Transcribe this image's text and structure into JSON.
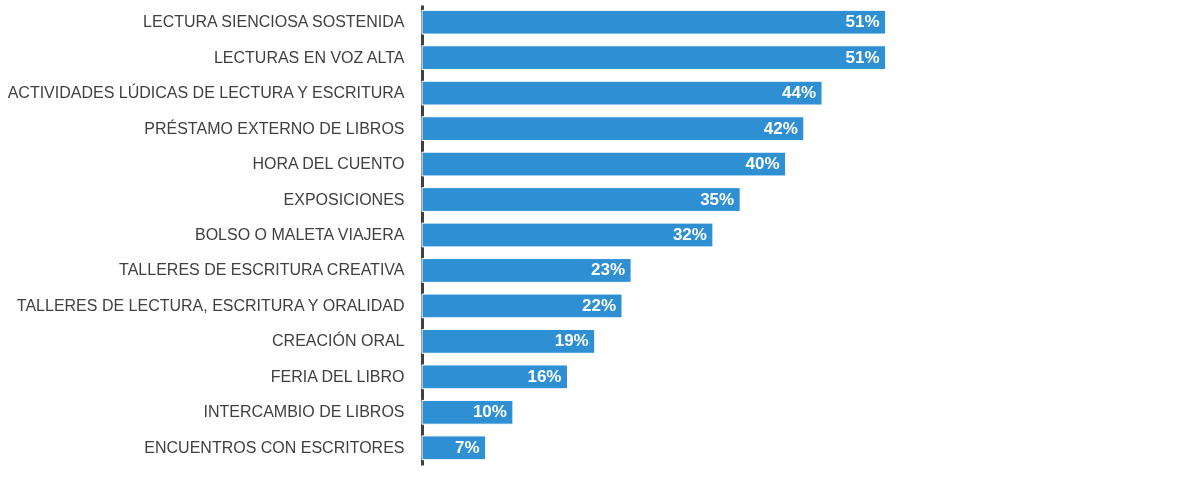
{
  "chart_data": {
    "type": "bar",
    "orientation": "horizontal",
    "categories": [
      "LECTURA SIENCIOSA SOSTENIDA",
      "LECTURAS EN VOZ ALTA",
      "ACTIVIDADES LÚDICAS DE LECTURA Y ESCRITURA",
      "PRÉSTAMO EXTERNO DE LIBROS",
      "HORA DEL CUENTO",
      "EXPOSICIONES",
      "BOLSO O MALETA VIAJERA",
      "TALLERES DE ESCRITURA CREATIVA",
      "TALLERES DE LECTURA, ESCRITURA Y ORALIDAD",
      "CREACIÓN ORAL",
      "FERIA DEL LIBRO",
      "INTERCAMBIO DE LIBROS",
      "ENCUENTROS CON ESCRITORES"
    ],
    "values": [
      51,
      51,
      44,
      42,
      40,
      35,
      32,
      23,
      22,
      19,
      16,
      10,
      7
    ],
    "value_labels": [
      "51%",
      "51%",
      "44%",
      "42%",
      "40%",
      "35%",
      "32%",
      "23%",
      "22%",
      "19%",
      "16%",
      "10%",
      "7%"
    ],
    "color": "#2e8fd2",
    "grid": false
  }
}
